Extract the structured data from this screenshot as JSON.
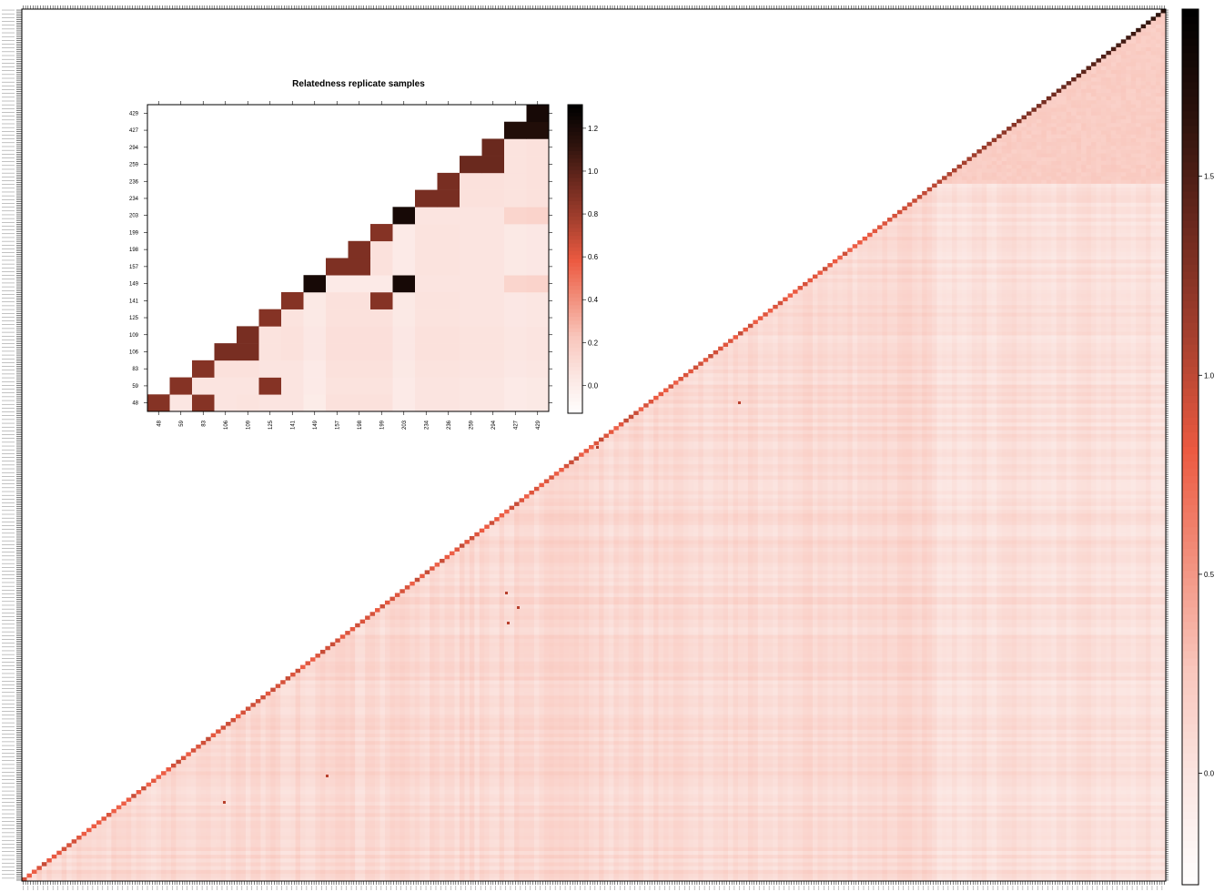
{
  "main_colorbar": {
    "ticks": [
      "0.0",
      "0.5",
      "1.0",
      "1.5"
    ],
    "tick_values": [
      0.0,
      0.5,
      1.0,
      1.5
    ],
    "range": [
      -0.28,
      1.92
    ]
  },
  "inset_colorbar": {
    "ticks": [
      "0.0",
      "0.2",
      "0.4",
      "0.6",
      "0.8",
      "1.0",
      "1.2"
    ],
    "tick_values": [
      0.0,
      0.2,
      0.4,
      0.6,
      0.8,
      1.0,
      1.2
    ],
    "range": [
      -0.13,
      1.31
    ]
  },
  "colors": {
    "scale": [
      "#ffffff",
      "#fbe6e2",
      "#f9c7bd",
      "#f2907d",
      "#ec5a41",
      "#a8412f",
      "#6e2a1f",
      "#2e130d",
      "#000000"
    ]
  },
  "chart_data": [
    {
      "type": "heatmap",
      "title": "",
      "xlabel": "",
      "ylabel": "",
      "description_scale": "upper-triangular relatedness matrix of ~460 samples",
      "diag_value": 0.78,
      "offdiag_typical": 0.12,
      "n_samples": 460,
      "highlight_block_value": 1.55,
      "colorbar_range": [
        -0.28,
        1.92
      ]
    },
    {
      "type": "heatmap",
      "title": "Relatedness replicate samples",
      "xlabel": "",
      "ylabel": "",
      "labels": [
        "48",
        "59",
        "83",
        "106",
        "109",
        "125",
        "141",
        "149",
        "157",
        "198",
        "199",
        "203",
        "234",
        "236",
        "259",
        "294",
        "427",
        "429"
      ],
      "colorbar_range": [
        -0.13,
        1.31
      ],
      "matrix": [
        [
          0.88,
          0.05,
          0.88,
          0.06,
          0.07,
          0.06,
          0.06,
          0.01,
          0.08,
          0.08,
          0.08,
          0.02,
          0.06,
          0.06,
          0.05,
          0.05,
          0.02,
          0.03
        ],
        [
          null,
          0.88,
          0.06,
          0.06,
          0.06,
          0.88,
          0.06,
          0.02,
          0.07,
          0.07,
          0.07,
          0.02,
          0.06,
          0.06,
          0.05,
          0.05,
          0.02,
          0.03
        ],
        [
          null,
          null,
          0.88,
          0.08,
          0.08,
          0.06,
          0.06,
          0.02,
          0.08,
          0.08,
          0.08,
          0.03,
          0.07,
          0.07,
          0.06,
          0.06,
          0.04,
          0.05
        ],
        [
          null,
          null,
          null,
          0.92,
          0.92,
          0.07,
          0.08,
          0.04,
          0.09,
          0.09,
          0.09,
          0.04,
          0.08,
          0.08,
          0.07,
          0.07,
          0.05,
          0.06
        ],
        [
          null,
          null,
          null,
          null,
          0.92,
          0.07,
          0.08,
          0.04,
          0.09,
          0.09,
          0.09,
          0.04,
          0.08,
          0.08,
          0.07,
          0.07,
          0.05,
          0.06
        ],
        [
          null,
          null,
          null,
          null,
          null,
          0.88,
          0.07,
          0.03,
          0.08,
          0.08,
          0.08,
          0.03,
          0.07,
          0.07,
          0.06,
          0.06,
          0.04,
          0.05
        ],
        [
          null,
          null,
          null,
          null,
          null,
          null,
          0.88,
          0.03,
          0.08,
          0.08,
          0.88,
          0.03,
          0.07,
          0.07,
          0.06,
          0.06,
          0.04,
          0.05
        ],
        [
          null,
          null,
          null,
          null,
          null,
          null,
          null,
          1.22,
          0.02,
          0.02,
          0.02,
          1.22,
          0.06,
          0.06,
          0.06,
          0.06,
          0.15,
          0.16
        ],
        [
          null,
          null,
          null,
          null,
          null,
          null,
          null,
          null,
          0.9,
          0.9,
          0.08,
          0.02,
          0.07,
          0.07,
          0.06,
          0.06,
          0.03,
          0.04
        ],
        [
          null,
          null,
          null,
          null,
          null,
          null,
          null,
          null,
          null,
          0.9,
          0.08,
          0.02,
          0.07,
          0.07,
          0.06,
          0.06,
          0.03,
          0.04
        ],
        [
          null,
          null,
          null,
          null,
          null,
          null,
          null,
          null,
          null,
          null,
          0.88,
          0.02,
          0.07,
          0.07,
          0.06,
          0.06,
          0.03,
          0.04
        ],
        [
          null,
          null,
          null,
          null,
          null,
          null,
          null,
          null,
          null,
          null,
          null,
          1.22,
          0.06,
          0.06,
          0.06,
          0.06,
          0.15,
          0.16
        ],
        [
          null,
          null,
          null,
          null,
          null,
          null,
          null,
          null,
          null,
          null,
          null,
          null,
          0.92,
          0.92,
          0.08,
          0.08,
          0.07,
          0.08
        ],
        [
          null,
          null,
          null,
          null,
          null,
          null,
          null,
          null,
          null,
          null,
          null,
          null,
          null,
          0.92,
          0.08,
          0.08,
          0.07,
          0.08
        ],
        [
          null,
          null,
          null,
          null,
          null,
          null,
          null,
          null,
          null,
          null,
          null,
          null,
          null,
          null,
          0.96,
          0.96,
          0.07,
          0.08
        ],
        [
          null,
          null,
          null,
          null,
          null,
          null,
          null,
          null,
          null,
          null,
          null,
          null,
          null,
          null,
          null,
          0.96,
          0.07,
          0.08
        ],
        [
          null,
          null,
          null,
          null,
          null,
          null,
          null,
          null,
          null,
          null,
          null,
          null,
          null,
          null,
          null,
          null,
          1.18,
          1.18
        ],
        [
          null,
          null,
          null,
          null,
          null,
          null,
          null,
          null,
          null,
          null,
          null,
          null,
          null,
          null,
          null,
          null,
          null,
          1.22
        ]
      ]
    }
  ]
}
